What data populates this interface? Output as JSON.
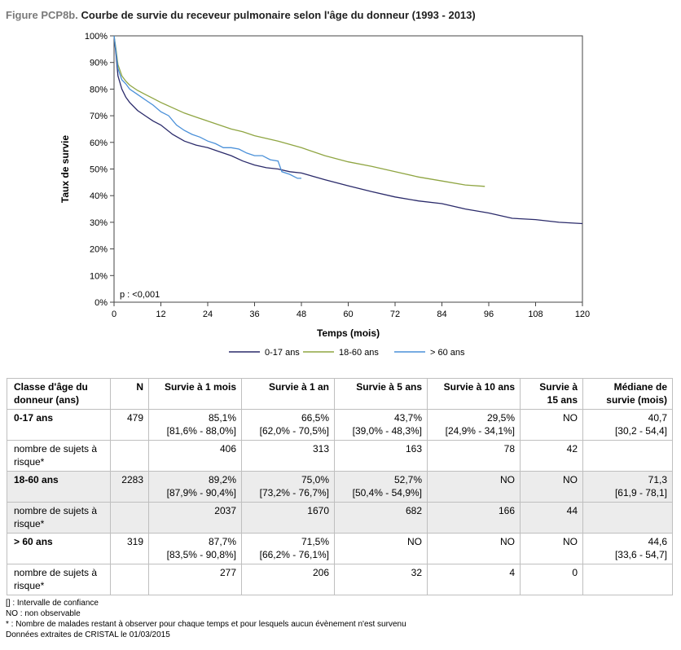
{
  "title_prefix": "Figure PCP8b.",
  "title_main": "Courbe de survie du receveur pulmonaire selon l'âge du donneur (1993 - 2013)",
  "chart_data": {
    "type": "line",
    "xlabel": "Temps (mois)",
    "ylabel": "Taux de survie",
    "xlim": [
      0,
      120
    ],
    "ylim": [
      0,
      100
    ],
    "x_ticks": [
      0,
      12,
      24,
      36,
      48,
      60,
      72,
      84,
      96,
      108,
      120
    ],
    "y_ticks": [
      "0%",
      "10%",
      "20%",
      "30%",
      "40%",
      "50%",
      "60%",
      "70%",
      "80%",
      "90%",
      "100%"
    ],
    "annotation": "p : <0,001",
    "legend_position": "bottom",
    "grid": false,
    "series": [
      {
        "name": "0-17 ans",
        "color": "#2a2a6a",
        "x": [
          0,
          0.5,
          1,
          2,
          3,
          4,
          6,
          8,
          10,
          12,
          15,
          18,
          21,
          24,
          27,
          30,
          33,
          36,
          39,
          42,
          45,
          48,
          54,
          60,
          66,
          72,
          78,
          84,
          90,
          96,
          102,
          108,
          114,
          120
        ],
        "y": [
          100,
          93,
          85,
          80,
          77,
          75,
          72,
          70,
          68,
          66.5,
          63,
          60.5,
          59,
          58,
          56.5,
          55,
          53,
          51.5,
          50.5,
          50,
          49,
          48.5,
          46,
          43.7,
          41.5,
          39.5,
          38,
          37,
          35,
          33.5,
          31.5,
          31,
          30,
          29.5
        ]
      },
      {
        "name": "18-60 ans",
        "color": "#8fa542",
        "x": [
          0,
          0.5,
          1,
          2,
          3,
          4,
          6,
          8,
          10,
          12,
          15,
          18,
          21,
          24,
          27,
          30,
          33,
          36,
          42,
          48,
          54,
          60,
          66,
          72,
          78,
          84,
          90,
          95
        ],
        "y": [
          100,
          95,
          89.2,
          85,
          83,
          81.5,
          79.5,
          78,
          76.5,
          75,
          73,
          71,
          69.5,
          68,
          66.5,
          65,
          64,
          62.5,
          60.5,
          58,
          55,
          52.7,
          51,
          49,
          47,
          45.5,
          44,
          43.5
        ]
      },
      {
        "name": "> 60 ans",
        "color": "#4a90d9",
        "x": [
          0,
          0.5,
          1,
          2,
          3,
          4,
          6,
          8,
          10,
          12,
          14,
          16,
          18,
          20,
          22,
          24,
          26,
          28,
          30,
          32,
          34,
          36,
          38,
          40,
          42,
          43,
          45,
          47,
          48
        ],
        "y": [
          100,
          94,
          87.7,
          83.5,
          82,
          80,
          78,
          76,
          74,
          71.5,
          70,
          66.5,
          64.5,
          63,
          62,
          60.5,
          59.5,
          58,
          58,
          57.5,
          56,
          55,
          55,
          53.5,
          53,
          49,
          48,
          46.5,
          46.5
        ]
      }
    ]
  },
  "table": {
    "headers": [
      "Classe d'âge du donneur (ans)",
      "N",
      "Survie à 1 mois",
      "Survie à 1 an",
      "Survie à 5 ans",
      "Survie à 10 ans",
      "Survie à 15 ans",
      "Médiane de survie (mois)"
    ],
    "groups": [
      {
        "label": "0-17 ans",
        "n": "479",
        "survival": [
          {
            "value": "85,1%",
            "ci": "[81,6% - 88,0%]"
          },
          {
            "value": "66,5%",
            "ci": "[62,0% - 70,5%]"
          },
          {
            "value": "43,7%",
            "ci": "[39,0% - 48,3%]"
          },
          {
            "value": "29,5%",
            "ci": "[24,9% - 34,1%]"
          },
          {
            "value": "NO",
            "ci": ""
          }
        ],
        "median": {
          "value": "40,7",
          "ci": "[30,2 - 54,4]"
        },
        "at_risk_label": "nombre de sujets à risque*",
        "at_risk": [
          "406",
          "313",
          "163",
          "78",
          "42"
        ]
      },
      {
        "label": "18-60 ans",
        "n": "2283",
        "survival": [
          {
            "value": "89,2%",
            "ci": "[87,9% - 90,4%]"
          },
          {
            "value": "75,0%",
            "ci": "[73,2% - 76,7%]"
          },
          {
            "value": "52,7%",
            "ci": "[50,4% - 54,9%]"
          },
          {
            "value": "NO",
            "ci": ""
          },
          {
            "value": "NO",
            "ci": ""
          }
        ],
        "median": {
          "value": "71,3",
          "ci": "[61,9 - 78,1]"
        },
        "at_risk_label": "nombre de sujets à risque*",
        "at_risk": [
          "2037",
          "1670",
          "682",
          "166",
          "44"
        ]
      },
      {
        "label": "> 60 ans",
        "n": "319",
        "survival": [
          {
            "value": "87,7%",
            "ci": "[83,5% - 90,8%]"
          },
          {
            "value": "71,5%",
            "ci": "[66,2% - 76,1%]"
          },
          {
            "value": "NO",
            "ci": ""
          },
          {
            "value": "NO",
            "ci": ""
          },
          {
            "value": "NO",
            "ci": ""
          }
        ],
        "median": {
          "value": "44,6",
          "ci": "[33,6 - 54,7]"
        },
        "at_risk_label": "nombre de sujets à risque*",
        "at_risk": [
          "277",
          "206",
          "32",
          "4",
          "0"
        ]
      }
    ]
  },
  "notes": [
    "[] : Intervalle de confiance",
    "NO : non observable",
    "* : Nombre de malades restant à observer pour chaque temps et pour lesquels aucun évènement n'est survenu",
    "Données extraites de CRISTAL le 01/03/2015"
  ]
}
